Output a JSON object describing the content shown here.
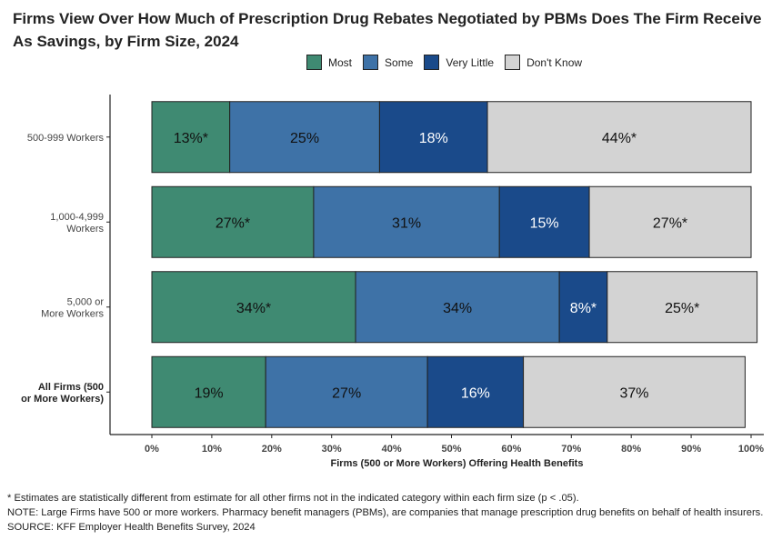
{
  "title": "Firms View Over How Much of Prescription Drug Rebates Negotiated by PBMs Does The Firm Receive As Savings, by Firm Size, 2024",
  "legend": [
    {
      "label": "Most",
      "color": "#3f8a72"
    },
    {
      "label": "Some",
      "color": "#3e72a7"
    },
    {
      "label": "Very Little",
      "color": "#1a4a8a"
    },
    {
      "label": "Don't Know",
      "color": "#d3d3d3"
    }
  ],
  "chart_data": {
    "type": "bar",
    "orientation": "horizontal",
    "stacked": true,
    "categories": [
      "500-999 Workers",
      "1,000-4,999 Workers",
      "5,000 or More Workers",
      "All Firms (500 or More Workers)"
    ],
    "series": [
      {
        "name": "Most",
        "color": "#3f8a72",
        "values": [
          13,
          27,
          34,
          19
        ],
        "labels": [
          "13%*",
          "27%*",
          "34%*",
          "19%"
        ]
      },
      {
        "name": "Some",
        "color": "#3e72a7",
        "values": [
          25,
          31,
          34,
          27
        ],
        "labels": [
          "25%",
          "31%",
          "34%",
          "27%"
        ]
      },
      {
        "name": "Very Little",
        "color": "#1a4a8a",
        "values": [
          18,
          15,
          8,
          16
        ],
        "labels": [
          "18%",
          "15%",
          "8%*",
          "16%"
        ]
      },
      {
        "name": "Don't Know",
        "color": "#d3d3d3",
        "values": [
          44,
          27,
          25,
          37
        ],
        "labels": [
          "44%*",
          "27%*",
          "25%*",
          "37%"
        ]
      }
    ],
    "xlabel": "Firms (500 or More Workers) Offering Health Benefits",
    "xlim": [
      0,
      100
    ],
    "xticks": [
      "0%",
      "10%",
      "20%",
      "30%",
      "40%",
      "50%",
      "60%",
      "70%",
      "80%",
      "90%",
      "100%"
    ],
    "grid": false,
    "legend_position": "top"
  },
  "footnotes": [
    "* Estimates are statistically different from estimate for all other firms not in the indicated category within each firm size (p < .05).",
    "NOTE: Large Firms have 500 or more workers.  Pharmacy benefit managers (PBMs), are companies that manage prescription drug benefits on behalf of health insurers.",
    "SOURCE: KFF Employer Health Benefits Survey, 2024"
  ]
}
